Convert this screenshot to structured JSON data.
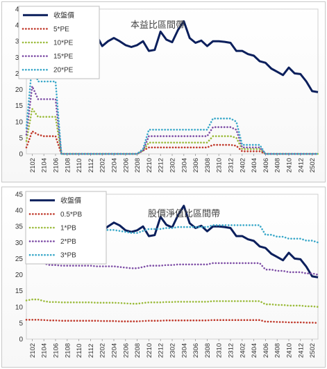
{
  "chart_data": [
    {
      "type": "line",
      "title": "本益比區間帶",
      "x": [
        "2101",
        "2102",
        "2103",
        "2104",
        "2105",
        "2106",
        "2107",
        "2108",
        "2109",
        "2110",
        "2111",
        "2112",
        "2201",
        "2202",
        "2203",
        "2204",
        "2205",
        "2206",
        "2207",
        "2208",
        "2209",
        "2210",
        "2211",
        "2212",
        "2301",
        "2302",
        "2303",
        "2304",
        "2305",
        "2306",
        "2307",
        "2308",
        "2309",
        "2310",
        "2311",
        "2312",
        "2401",
        "2402",
        "2403",
        "2404",
        "2405",
        "2406",
        "2407",
        "2408",
        "2409",
        "2410",
        "2411",
        "2412",
        "2501",
        "2502",
        "2503"
      ],
      "x_tick_labels": [
        "2102",
        "2104",
        "2106",
        "2108",
        "2110",
        "2112",
        "2202",
        "2204",
        "2206",
        "2208",
        "2210",
        "2212",
        "2302",
        "2304",
        "2306",
        "2308",
        "2310",
        "2312",
        "2402",
        "2404",
        "2406",
        "2408",
        "2410",
        "2412",
        "2502"
      ],
      "ylim": [
        0,
        45
      ],
      "y_ticks": [
        0,
        5,
        10,
        15,
        20,
        25,
        30,
        35,
        40,
        45
      ],
      "legend_position": "top-left",
      "series": [
        {
          "name": "收盤價",
          "color": "#0b1f5c",
          "style": "solid",
          "values": [
            null,
            null,
            null,
            null,
            null,
            null,
            null,
            null,
            null,
            null,
            null,
            null,
            37,
            33.5,
            35,
            36,
            35,
            33.8,
            33.2,
            33.8,
            35,
            32,
            32.3,
            38,
            35.5,
            34.7,
            38.5,
            41.2,
            36,
            34.5,
            35.2,
            33.5,
            35,
            35,
            34.8,
            34.5,
            32,
            32,
            31,
            30.5,
            28.8,
            28.3,
            26.5,
            25.5,
            24.5,
            26.8,
            25,
            24.8,
            22.5,
            19.5,
            19.2
          ]
        },
        {
          "name": "5*PE",
          "color": "#c0392b",
          "style": "dotted",
          "values": [
            2,
            7,
            6,
            5.5,
            5.5,
            5.5,
            0,
            0,
            0,
            0,
            0,
            0,
            0,
            0,
            0,
            0,
            0,
            0,
            0,
            0,
            1,
            2,
            2,
            2,
            2,
            2,
            2,
            2,
            2,
            2,
            2,
            2,
            2.8,
            2.8,
            2.8,
            2.8,
            2.5,
            0.8,
            0.8,
            0.8,
            0.8,
            0,
            0,
            0,
            0,
            0,
            0,
            0,
            0,
            0,
            0
          ]
        },
        {
          "name": "10*PE",
          "color": "#9bbb3b",
          "style": "dotted",
          "values": [
            4,
            14,
            11.5,
            11.5,
            11.5,
            11.5,
            0,
            0,
            0,
            0,
            0,
            0,
            0,
            0,
            0,
            0,
            0,
            0,
            0,
            0,
            1,
            3.5,
            3.5,
            3.5,
            3.5,
            3.5,
            3.5,
            3.5,
            3.5,
            3.5,
            3.5,
            3.5,
            5.5,
            5.5,
            5.5,
            5.5,
            5,
            1.5,
            1.5,
            1.5,
            1.5,
            0,
            0,
            0,
            0,
            0,
            0,
            0,
            0,
            0,
            0
          ]
        },
        {
          "name": "15*PE",
          "color": "#7e4ea6",
          "style": "dotted",
          "values": [
            6,
            21,
            17,
            17,
            17,
            17,
            0,
            0,
            0,
            0,
            0,
            0,
            0,
            0,
            0,
            0,
            0,
            0,
            0,
            0,
            1,
            5.5,
            5.5,
            5.5,
            5.5,
            5.5,
            5.5,
            5.5,
            5.5,
            5.5,
            5.5,
            5.5,
            8.3,
            8.3,
            8.3,
            8.3,
            7.5,
            2,
            2,
            2,
            2,
            0,
            0,
            0,
            0,
            0,
            0,
            0,
            0,
            0,
            0
          ]
        },
        {
          "name": "20*PE",
          "color": "#3aa8c9",
          "style": "dotted",
          "values": [
            8,
            28,
            22.5,
            22.5,
            22.5,
            22.5,
            0,
            0,
            0,
            0,
            0,
            0,
            0,
            0,
            0,
            0,
            0,
            0,
            0,
            0,
            1.5,
            7.5,
            7.5,
            7.5,
            7.5,
            7.5,
            7.5,
            7.5,
            7.5,
            7.5,
            7.5,
            7.5,
            11,
            11,
            11,
            11,
            10,
            2.8,
            2.8,
            2.8,
            2.8,
            0,
            0,
            0,
            0,
            0,
            0,
            0,
            0,
            0,
            0
          ]
        }
      ]
    },
    {
      "type": "line",
      "title": "股價淨值比區間帶",
      "x": [
        "2101",
        "2102",
        "2103",
        "2104",
        "2105",
        "2106",
        "2107",
        "2108",
        "2109",
        "2110",
        "2111",
        "2112",
        "2201",
        "2202",
        "2203",
        "2204",
        "2205",
        "2206",
        "2207",
        "2208",
        "2209",
        "2210",
        "2211",
        "2212",
        "2301",
        "2302",
        "2303",
        "2304",
        "2305",
        "2306",
        "2307",
        "2308",
        "2309",
        "2310",
        "2311",
        "2312",
        "2401",
        "2402",
        "2403",
        "2404",
        "2405",
        "2406",
        "2407",
        "2408",
        "2409",
        "2410",
        "2411",
        "2412",
        "2501",
        "2502",
        "2503"
      ],
      "x_tick_labels": [
        "2102",
        "2104",
        "2106",
        "2108",
        "2110",
        "2112",
        "2202",
        "2204",
        "2206",
        "2208",
        "2210",
        "2212",
        "2302",
        "2304",
        "2306",
        "2308",
        "2310",
        "2312",
        "2402",
        "2404",
        "2406",
        "2408",
        "2410",
        "2412",
        "2502"
      ],
      "ylim": [
        0,
        45
      ],
      "y_ticks": [
        0,
        5,
        10,
        15,
        20,
        25,
        30,
        35,
        40,
        45
      ],
      "legend_position": "top-left",
      "series": [
        {
          "name": "收盤價",
          "color": "#0b1f5c",
          "style": "solid",
          "values": [
            null,
            null,
            null,
            null,
            null,
            null,
            null,
            null,
            null,
            null,
            null,
            null,
            null,
            33.5,
            35,
            36.2,
            35.3,
            33.8,
            33.3,
            33.8,
            35,
            32,
            32.3,
            38,
            35.5,
            34.7,
            38.5,
            41.4,
            36,
            34.5,
            35.2,
            33.5,
            35,
            35,
            34.8,
            34.5,
            32,
            32,
            31,
            30.5,
            28.8,
            28.3,
            26.5,
            25.5,
            24.5,
            26.8,
            25,
            24.8,
            22.5,
            19.5,
            19.2
          ]
        },
        {
          "name": "0.5*PB",
          "color": "#c0392b",
          "style": "dotted",
          "values": [
            6,
            6,
            6,
            5.9,
            5.8,
            5.8,
            5.7,
            5.7,
            5.7,
            5.7,
            5.7,
            5.7,
            5.7,
            5.6,
            5.6,
            5.6,
            5.5,
            5.5,
            5.5,
            5.5,
            5.6,
            5.7,
            5.7,
            5.7,
            5.8,
            5.8,
            5.8,
            5.8,
            5.8,
            5.8,
            5.8,
            5.8,
            5.9,
            5.9,
            5.9,
            5.9,
            5.9,
            5.9,
            5.9,
            5.9,
            5.9,
            5.4,
            5.4,
            5.3,
            5.3,
            5.2,
            5.2,
            5.2,
            5.1,
            5.1,
            5
          ]
        },
        {
          "name": "1*PB",
          "color": "#9bbb3b",
          "style": "dotted",
          "values": [
            12,
            12.3,
            12.3,
            11.8,
            11.5,
            11.5,
            11.4,
            11.4,
            11.4,
            11.4,
            11.4,
            11.4,
            11.3,
            11.3,
            11.3,
            11.3,
            11.2,
            11.1,
            11,
            11,
            11.2,
            11.4,
            11.4,
            11.4,
            11.5,
            11.5,
            11.6,
            11.6,
            11.6,
            11.6,
            11.6,
            11.6,
            11.8,
            11.8,
            11.8,
            11.8,
            11.8,
            11.8,
            11.8,
            11.8,
            11.8,
            10.8,
            10.8,
            10.6,
            10.6,
            10.4,
            10.4,
            10.4,
            10.2,
            10.2,
            10
          ]
        },
        {
          "name": "2*PB",
          "color": "#7e4ea6",
          "style": "dotted",
          "values": [
            24.5,
            24.5,
            24.5,
            23.5,
            23,
            23,
            22.8,
            22.8,
            22.8,
            22.8,
            22.8,
            22.8,
            22.6,
            22.6,
            22.6,
            22.6,
            22.4,
            22.2,
            22,
            22,
            22.4,
            22.8,
            22.8,
            22.8,
            23,
            23,
            23.2,
            23.2,
            23.2,
            23.2,
            23.2,
            23.2,
            23.6,
            23.6,
            23.6,
            23.6,
            23.6,
            23.6,
            23.6,
            23.6,
            23.6,
            21.6,
            21.6,
            21.2,
            21.2,
            20.8,
            20.8,
            20.8,
            20.4,
            20.4,
            20
          ]
        },
        {
          "name": "3*PB",
          "color": "#3aa8c9",
          "style": "dotted",
          "values": [
            36.5,
            36.8,
            36.8,
            35.3,
            34.5,
            34.5,
            34.2,
            34.2,
            34.2,
            34.2,
            34.2,
            34.2,
            33.9,
            33.9,
            33.9,
            33.9,
            33.6,
            33.3,
            33,
            33,
            33.6,
            34.2,
            34.2,
            34.2,
            34.5,
            34.5,
            34.8,
            34.8,
            34.8,
            34.8,
            34.8,
            34.8,
            35.4,
            35.4,
            35.4,
            35.4,
            35.4,
            35.4,
            35.4,
            35.4,
            35.4,
            32.4,
            32.4,
            31.8,
            31.8,
            31.2,
            31.2,
            31.2,
            30.6,
            30.6,
            30
          ]
        }
      ]
    }
  ]
}
